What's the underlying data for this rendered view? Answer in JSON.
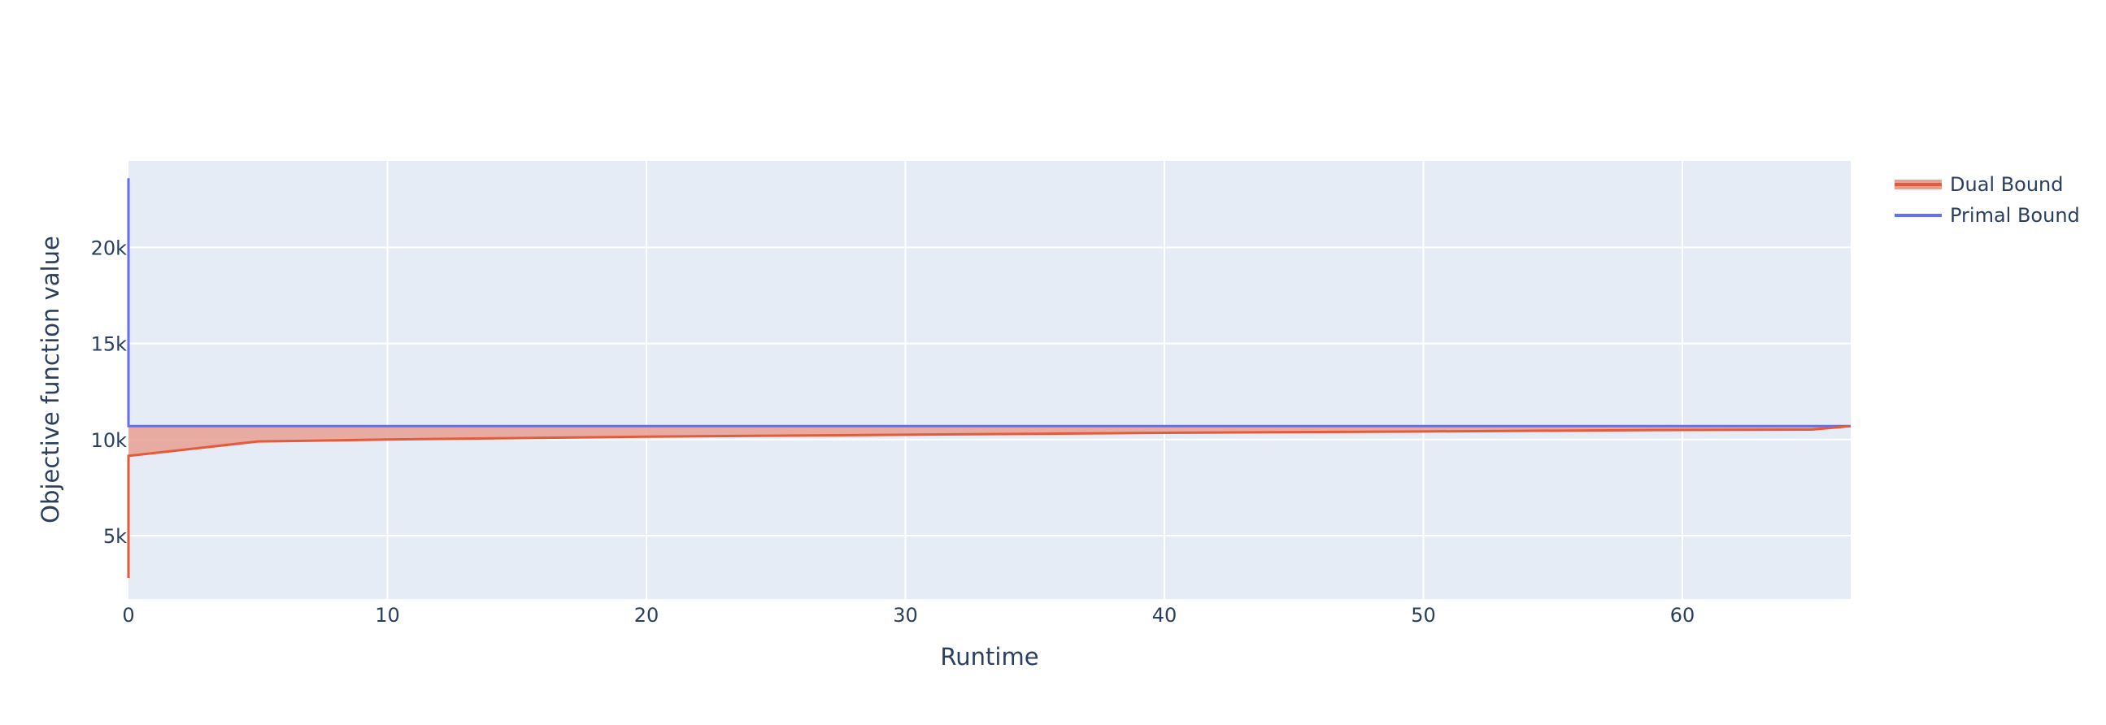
{
  "chart_data": {
    "type": "line",
    "title": "",
    "xlabel": "Runtime",
    "ylabel": "Objective function value",
    "xlim": [
      0,
      66.5
    ],
    "ylim": [
      1700,
      24500
    ],
    "x_ticks": [
      0,
      10,
      20,
      30,
      40,
      50,
      60
    ],
    "x_tick_labels": [
      "0",
      "10",
      "20",
      "30",
      "40",
      "50",
      "60"
    ],
    "y_ticks": [
      5000,
      10000,
      15000,
      20000
    ],
    "y_tick_labels": [
      "5k",
      "10k",
      "15k",
      "20k"
    ],
    "grid": true,
    "legend_position": "top-right, outside plot",
    "series": [
      {
        "name": "Dual Bound",
        "color": "#e45a3b",
        "fill_color": "#e8a092",
        "fill": "to Primal Bound",
        "x": [
          0,
          0,
          5,
          10,
          20,
          30,
          40,
          50,
          60,
          65,
          66.5
        ],
        "y": [
          2800,
          9150,
          9900,
          10000,
          10150,
          10250,
          10350,
          10420,
          10500,
          10520,
          10700
        ]
      },
      {
        "name": "Primal Bound",
        "color": "#636efa",
        "x": [
          0,
          0,
          66.5
        ],
        "y": [
          23600,
          10700,
          10700
        ]
      }
    ]
  }
}
